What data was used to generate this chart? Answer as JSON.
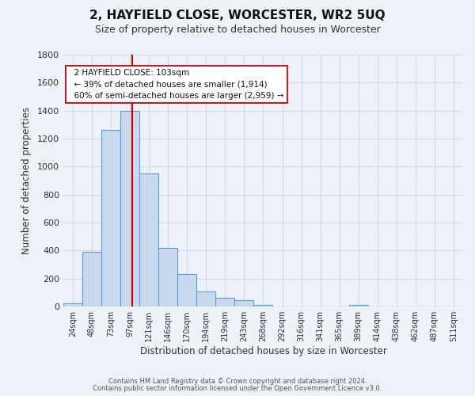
{
  "title": "2, HAYFIELD CLOSE, WORCESTER, WR2 5UQ",
  "subtitle": "Size of property relative to detached houses in Worcester",
  "xlabel": "Distribution of detached houses by size in Worcester",
  "ylabel": "Number of detached properties",
  "bar_labels": [
    "24sqm",
    "48sqm",
    "73sqm",
    "97sqm",
    "121sqm",
    "146sqm",
    "170sqm",
    "194sqm",
    "219sqm",
    "243sqm",
    "268sqm",
    "292sqm",
    "316sqm",
    "341sqm",
    "365sqm",
    "389sqm",
    "414sqm",
    "438sqm",
    "462sqm",
    "487sqm",
    "511sqm"
  ],
  "bar_values": [
    25,
    390,
    1260,
    1400,
    950,
    420,
    235,
    110,
    65,
    48,
    10,
    0,
    0,
    0,
    0,
    15,
    0,
    0,
    0,
    0,
    0
  ],
  "bar_color": "#c8d9ed",
  "bar_edge_color": "#5b9bd5",
  "ylim": [
    0,
    1800
  ],
  "yticks": [
    0,
    200,
    400,
    600,
    800,
    1000,
    1200,
    1400,
    1600,
    1800
  ],
  "property_line_x": 3.62,
  "property_line_color": "#cc0000",
  "annotation_title": "2 HAYFIELD CLOSE: 103sqm",
  "annotation_line1": "← 39% of detached houses are smaller (1,914)",
  "annotation_line2": "60% of semi-detached houses are larger (2,959) →",
  "annotation_box_color": "#ffffff",
  "annotation_box_edge": "#cc0000",
  "footer1": "Contains HM Land Registry data © Crown copyright and database right 2024.",
  "footer2": "Contains public sector information licensed under the Open Government Licence v3.0.",
  "background_color": "#edf2f8",
  "plot_bg_color": "#edf2f8",
  "grid_color": "#d0d8e8"
}
